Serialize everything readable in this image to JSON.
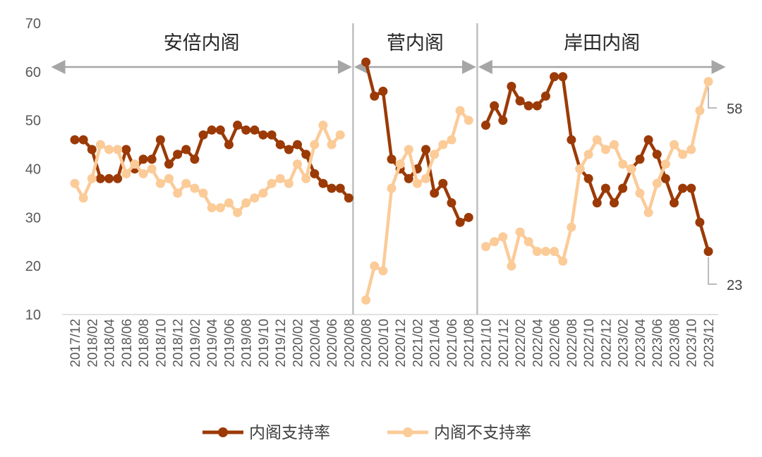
{
  "chart_data": {
    "type": "line",
    "ylim": [
      10,
      70
    ],
    "yticks": [
      "10",
      "20",
      "30",
      "40",
      "50",
      "60",
      "70"
    ],
    "x_labels": [
      "2017/12",
      "2018/02",
      "2018/04",
      "2018/06",
      "2018/08",
      "2018/10",
      "2018/12",
      "2019/02",
      "2019/04",
      "2019/06",
      "2019/08",
      "2019/10",
      "2019/12",
      "2020/02",
      "2020/04",
      "2020/06",
      "2020/08",
      "2020/08",
      "2020/10",
      "2020/12",
      "2021/02",
      "2021/04",
      "2021/06",
      "2021/08",
      "2021/10",
      "2021/12",
      "2022/02",
      "2022/04",
      "2022/06",
      "2022/08",
      "2022/10",
      "2022/12",
      "2023/02",
      "2023/04",
      "2023/06",
      "2023/08",
      "2023/10",
      "2023/12"
    ],
    "grid": false,
    "legend_position": "bottom",
    "series": [
      {
        "name": "内阁支持率",
        "color": "#9B3A06",
        "values": [
          46,
          46,
          44,
          38,
          38,
          38,
          44,
          40,
          42,
          42,
          46,
          41,
          43,
          44,
          42,
          47,
          48,
          48,
          45,
          49,
          48,
          48,
          47,
          47,
          45,
          44,
          45,
          43,
          39,
          37,
          36,
          36,
          34,
          null,
          62,
          55,
          56,
          42,
          40,
          38,
          40,
          44,
          35,
          37,
          33,
          29,
          30,
          null,
          49,
          53,
          50,
          57,
          54,
          53,
          53,
          55,
          59,
          59,
          46,
          40,
          38,
          33,
          36,
          33,
          36,
          40,
          42,
          46,
          43,
          38,
          33,
          36,
          36,
          29,
          23
        ]
      },
      {
        "name": "内阁不支持率",
        "color": "#FBCB98",
        "values": [
          37,
          34,
          38,
          45,
          44,
          44,
          39,
          41,
          39,
          40,
          37,
          38,
          35,
          37,
          36,
          35,
          32,
          32,
          33,
          31,
          33,
          34,
          35,
          37,
          38,
          37,
          41,
          38,
          45,
          49,
          45,
          47,
          null,
          null,
          13,
          20,
          19,
          36,
          41,
          44,
          37,
          38,
          43,
          45,
          46,
          52,
          50,
          null,
          24,
          25,
          26,
          20,
          27,
          25,
          23,
          23,
          23,
          21,
          28,
          40,
          43,
          46,
          44,
          45,
          41,
          40,
          35,
          31,
          37,
          41,
          45,
          43,
          44,
          52,
          58
        ]
      }
    ],
    "eras": [
      {
        "label": "安倍内阁",
        "start": 0,
        "end": 32.5
      },
      {
        "label": "菅内阁",
        "start": 32.5,
        "end": 47
      },
      {
        "label": "岸田内阁",
        "start": 47,
        "end": 74
      }
    ],
    "end_labels": [
      {
        "series": 1,
        "text": "58"
      },
      {
        "series": 0,
        "text": "23"
      }
    ]
  }
}
